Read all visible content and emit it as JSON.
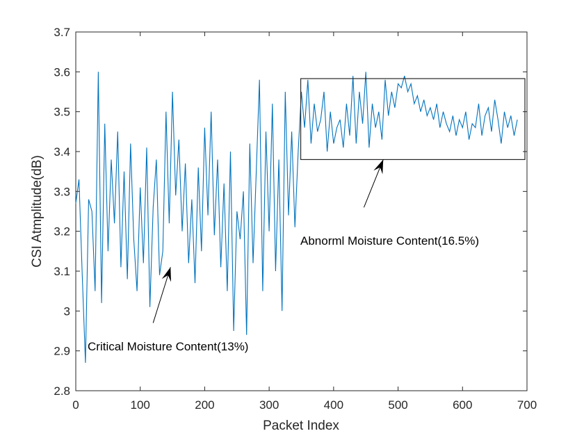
{
  "chart_data": {
    "type": "line",
    "title": "",
    "xlabel": "Packet Index",
    "ylabel": "CSI Atmplitude(dB)",
    "xlim": [
      0,
      700
    ],
    "ylim": [
      2.8,
      3.7
    ],
    "xticks": [
      "0",
      "100",
      "200",
      "300",
      "400",
      "500",
      "600",
      "700"
    ],
    "yticks": [
      "2.8",
      "2.9",
      "3",
      "3.1",
      "3.2",
      "3.3",
      "3.4",
      "3.5",
      "3.6",
      "3.7"
    ],
    "grid": false,
    "legend": "none",
    "line_color": "#0072BD",
    "series": [
      {
        "x": [
          0,
          5,
          10,
          15,
          20,
          25,
          30,
          35,
          40,
          45,
          50,
          55,
          60,
          65,
          70,
          75,
          80,
          85,
          90,
          95,
          100,
          105,
          110,
          115,
          120,
          125,
          130,
          135,
          140,
          145,
          150,
          155,
          160,
          165,
          170,
          175,
          180,
          185,
          190,
          195,
          200,
          205,
          210,
          215,
          220,
          225,
          230,
          235,
          240,
          245,
          250,
          255,
          260,
          265,
          270,
          275,
          280,
          285,
          290,
          295,
          300,
          305,
          310,
          315,
          320,
          325,
          330,
          335,
          340,
          345,
          350,
          355,
          360,
          365,
          370,
          375,
          380,
          385,
          390,
          395,
          400,
          405,
          410,
          415,
          420,
          425,
          430,
          435,
          440,
          445,
          450,
          455,
          460,
          465,
          470,
          475,
          480,
          485,
          490,
          495,
          500,
          505,
          510,
          515,
          520,
          525,
          530,
          535,
          540,
          545,
          550,
          555,
          560,
          565,
          570,
          575,
          580,
          585,
          590,
          595,
          600,
          605,
          610,
          615,
          620,
          625,
          630,
          635,
          640,
          645,
          650,
          655,
          660,
          665,
          670,
          675,
          680,
          685
        ],
        "y": [
          3.27,
          3.33,
          3.09,
          2.87,
          3.28,
          3.25,
          3.05,
          3.6,
          3.02,
          3.47,
          3.15,
          3.38,
          3.22,
          3.45,
          3.11,
          3.35,
          3.08,
          3.42,
          3.18,
          3.05,
          3.31,
          3.12,
          3.41,
          3.01,
          3.26,
          3.38,
          3.09,
          3.15,
          3.5,
          3.22,
          3.55,
          3.29,
          3.43,
          3.2,
          3.37,
          3.12,
          3.28,
          3.07,
          3.36,
          3.15,
          3.46,
          3.24,
          3.5,
          3.19,
          3.38,
          3.11,
          3.32,
          3.05,
          3.4,
          2.95,
          3.25,
          3.18,
          3.3,
          2.94,
          3.42,
          3.12,
          3.35,
          3.58,
          3.05,
          3.45,
          3.2,
          3.52,
          3.1,
          3.38,
          3.0,
          3.55,
          3.24,
          3.45,
          3.21,
          3.4,
          3.55,
          3.46,
          3.58,
          3.42,
          3.52,
          3.45,
          3.48,
          3.55,
          3.4,
          3.5,
          3.42,
          3.46,
          3.48,
          3.41,
          3.52,
          3.44,
          3.59,
          3.42,
          3.55,
          3.47,
          3.6,
          3.41,
          3.52,
          3.46,
          3.5,
          3.43,
          3.58,
          3.49,
          3.55,
          3.51,
          3.57,
          3.56,
          3.59,
          3.55,
          3.57,
          3.52,
          3.54,
          3.5,
          3.53,
          3.49,
          3.51,
          3.48,
          3.52,
          3.46,
          3.5,
          3.47,
          3.45,
          3.49,
          3.44,
          3.48,
          3.46,
          3.5,
          3.43,
          3.47,
          3.46,
          3.52,
          3.44,
          3.49,
          3.51,
          3.45,
          3.53,
          3.48,
          3.42,
          3.5,
          3.46,
          3.49,
          3.44,
          3.48
        ]
      }
    ],
    "annotations": [
      {
        "text": "Critical Moisture Content(13%)",
        "arrow_from": [
          120,
          2.97
        ],
        "arrow_to": [
          147,
          3.11
        ]
      },
      {
        "text": "Abnorml Moisture  Content(16.5%)",
        "arrow_from": [
          447,
          3.26
        ],
        "arrow_to": [
          477,
          3.38
        ]
      }
    ],
    "highlight_box": {
      "x": [
        349,
        700
      ],
      "y": [
        3.38,
        3.583
      ]
    }
  }
}
